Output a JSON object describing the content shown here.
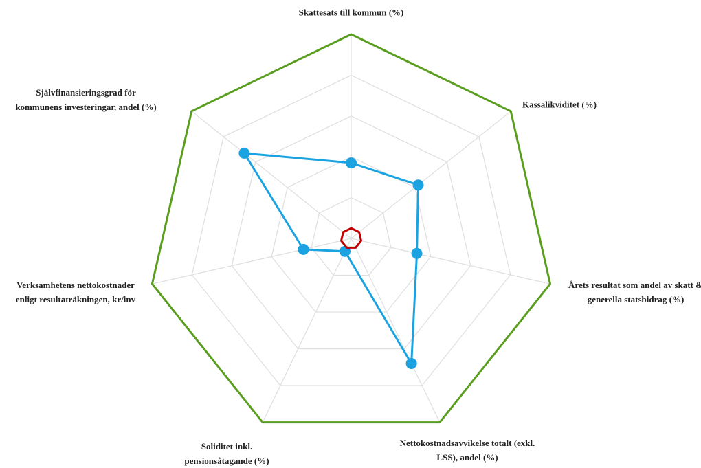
{
  "chart_data": {
    "type": "radar",
    "categories": [
      "Skattesats till kommun (%)",
      "Kassalikviditet (%)",
      "Årets resultat som andel av skatt & generella statsbidrag (%)",
      "Nettokostnadsavvikelse totalt (exkl. LSS), andel (%)",
      "Soliditet inkl. pensionsåtagande (%)",
      "Verksamhetens nettokostnader enligt resultaträkningen, kr/inv",
      "Självfinansieringsgrad för kommunens investeringar, andel (%)"
    ],
    "series": [
      {
        "color": "#5a9e1f",
        "markers": false,
        "values": [
          10,
          10,
          10,
          10,
          10,
          10,
          10
        ]
      },
      {
        "color": "#1aa3e0",
        "markers": true,
        "values": [
          3.7,
          4.2,
          3.3,
          6.8,
          0.7,
          2.4,
          6.7
        ]
      },
      {
        "color": "#c00000",
        "markers": false,
        "values": [
          0.5,
          0.5,
          0.5,
          0.5,
          0.5,
          0.5,
          0.5
        ]
      }
    ],
    "rlim": [
      0,
      10
    ],
    "rticks": [
      2,
      4,
      6,
      8,
      10
    ],
    "grid": true
  }
}
